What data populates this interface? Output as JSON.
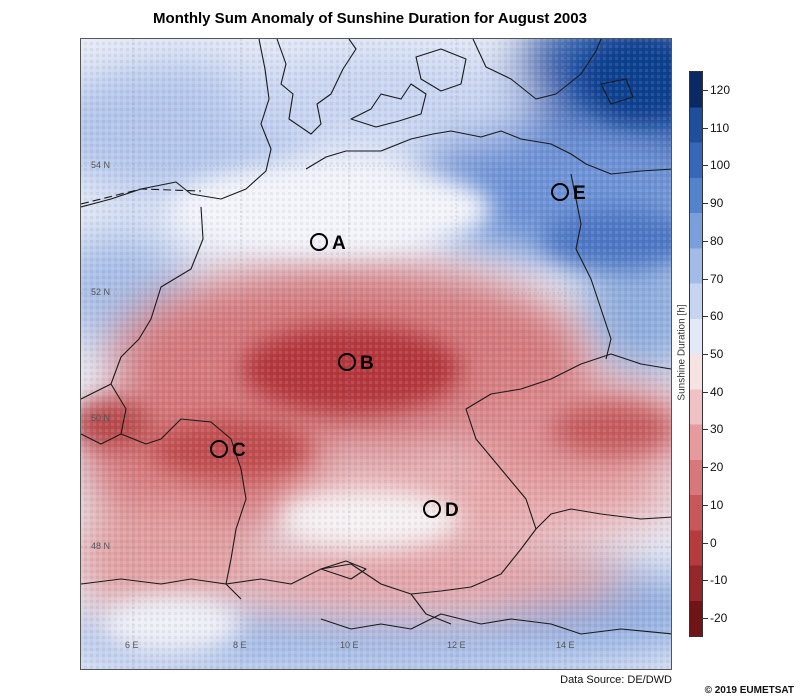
{
  "title": "Monthly Sum Anomaly of Sunshine Duration for August 2003",
  "colorbar": {
    "label": "Sunshine Duration [h]",
    "ticks": [
      "120",
      "110",
      "100",
      "90",
      "80",
      "70",
      "60",
      "50",
      "40",
      "30",
      "20",
      "10",
      "0",
      "-10",
      "-20"
    ],
    "min": -25,
    "max": 125,
    "colors": [
      "#0a2a66",
      "#1f4e9c",
      "#3667b8",
      "#5383cc",
      "#7a9fdc",
      "#a2bbe8",
      "#c6d3f1",
      "#e4e9f7",
      "#f6e2e2",
      "#f0c2c4",
      "#e69a9d",
      "#d9787c",
      "#c95759",
      "#b53b3e",
      "#95262a",
      "#701418"
    ]
  },
  "grid": {
    "latitudes": [
      "54 N",
      "52 N",
      "50 N",
      "48 N"
    ],
    "longitudes": [
      "6 E",
      "8 E",
      "10 E",
      "12 E",
      "14 E"
    ]
  },
  "stations": [
    {
      "label": "A"
    },
    {
      "label": "B"
    },
    {
      "label": "C"
    },
    {
      "label": "D"
    },
    {
      "label": "E"
    }
  ],
  "data_source": "Data Source: DE/DWD",
  "copyright": "© 2019 EUMETSAT"
}
